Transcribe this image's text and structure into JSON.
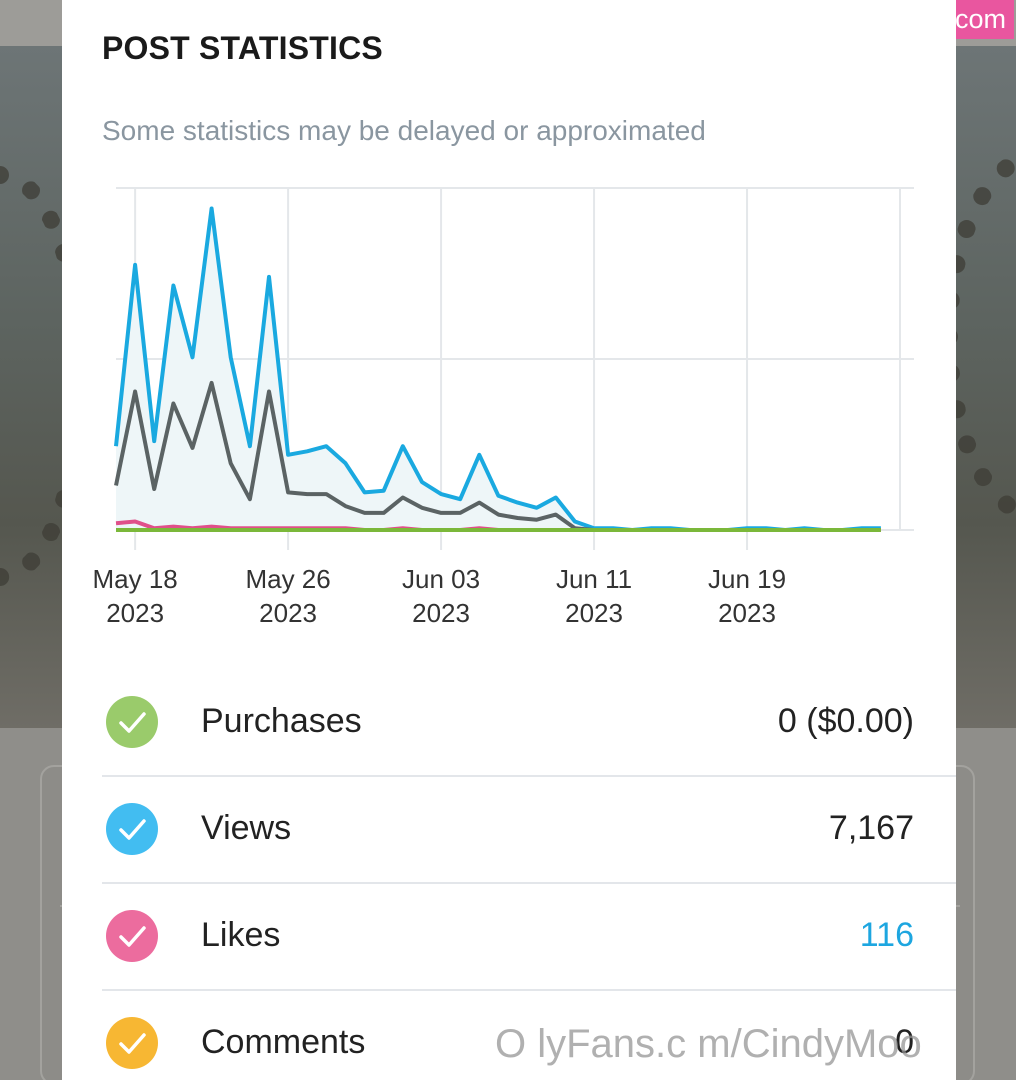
{
  "watermark": "fapello.com",
  "watermark_bottom": "O lyFans.c m/CindyMoo",
  "modal": {
    "title": "POST STATISTICS",
    "subtitle": "Some statistics may be delayed or approximated"
  },
  "colors": {
    "views": "#1aa9e0",
    "gray_series": "#5b6364",
    "likes": "#e0508a",
    "purchases": "#7bb83a",
    "check_purchases": "#9acb6b",
    "check_views": "#42bdf1",
    "check_likes": "#ec6c9e",
    "check_comments": "#f7b733"
  },
  "chart_data": {
    "type": "line",
    "x_ticks": [
      {
        "date": "May 18",
        "year": "2023"
      },
      {
        "date": "May 26",
        "year": "2023"
      },
      {
        "date": "Jun 03",
        "year": "2023"
      },
      {
        "date": "Jun 11",
        "year": "2023"
      },
      {
        "date": "Jun 19",
        "year": "2023"
      }
    ],
    "x_start": "2023-05-17",
    "x_end": "2023-06-27",
    "ylim": [
      0,
      2
    ],
    "grid": true,
    "series": [
      {
        "key": "views",
        "color": "#1aa9e0",
        "fill": "#eef6f8",
        "values": [
          0.49,
          1.55,
          0.52,
          1.43,
          1.01,
          1.88,
          1.01,
          0.49,
          1.48,
          0.44,
          0.46,
          0.49,
          0.39,
          0.22,
          0.23,
          0.49,
          0.28,
          0.21,
          0.18,
          0.44,
          0.2,
          0.16,
          0.13,
          0.19,
          0.05,
          0.01,
          0.01,
          0.0,
          0.01,
          0.01,
          0.0,
          0.0,
          0.0,
          0.01,
          0.01,
          0.0,
          0.01,
          0.0,
          0.0,
          0.01,
          0.01
        ]
      },
      {
        "key": "gray",
        "color": "#5b6364",
        "values": [
          0.26,
          0.81,
          0.24,
          0.74,
          0.48,
          0.86,
          0.39,
          0.18,
          0.81,
          0.22,
          0.21,
          0.21,
          0.14,
          0.1,
          0.1,
          0.19,
          0.13,
          0.1,
          0.1,
          0.16,
          0.09,
          0.07,
          0.06,
          0.09,
          0.01,
          0.0,
          0.0,
          0.0,
          0.0,
          0.0,
          0.0,
          0.0,
          0.0,
          0.0,
          0.0,
          0.0,
          0.0,
          0.0,
          0.0,
          0.0,
          0.0
        ]
      },
      {
        "key": "likes",
        "color": "#e0508a",
        "values": [
          0.04,
          0.05,
          0.01,
          0.02,
          0.01,
          0.02,
          0.01,
          0.01,
          0.01,
          0.01,
          0.01,
          0.01,
          0.01,
          0.0,
          0.0,
          0.01,
          0.0,
          0.0,
          0.0,
          0.01,
          0.0,
          0.0,
          0.0,
          0.0,
          0.0,
          0.0,
          0.0,
          0.0,
          0.0,
          0.0,
          0.0,
          0.0,
          0.0,
          0.0,
          0.0,
          0.0,
          0.0,
          0.0,
          0.0,
          0.0,
          0.0
        ]
      },
      {
        "key": "purchases",
        "color": "#7bb83a",
        "values": [
          0,
          0,
          0,
          0,
          0,
          0,
          0,
          0,
          0,
          0,
          0,
          0,
          0,
          0,
          0,
          0,
          0,
          0,
          0,
          0,
          0,
          0,
          0,
          0,
          0,
          0,
          0,
          0,
          0,
          0,
          0,
          0,
          0,
          0,
          0,
          0,
          0,
          0,
          0,
          0,
          0
        ]
      }
    ]
  },
  "stats": [
    {
      "label": "Purchases",
      "value": "0 ($0.00)",
      "check": "check_purchases"
    },
    {
      "label": "Views",
      "value": "7,167",
      "check": "check_views"
    },
    {
      "label": "Likes",
      "value": "116",
      "check": "check_likes",
      "link": true
    },
    {
      "label": "Comments",
      "value": "0",
      "check": "check_comments"
    }
  ]
}
